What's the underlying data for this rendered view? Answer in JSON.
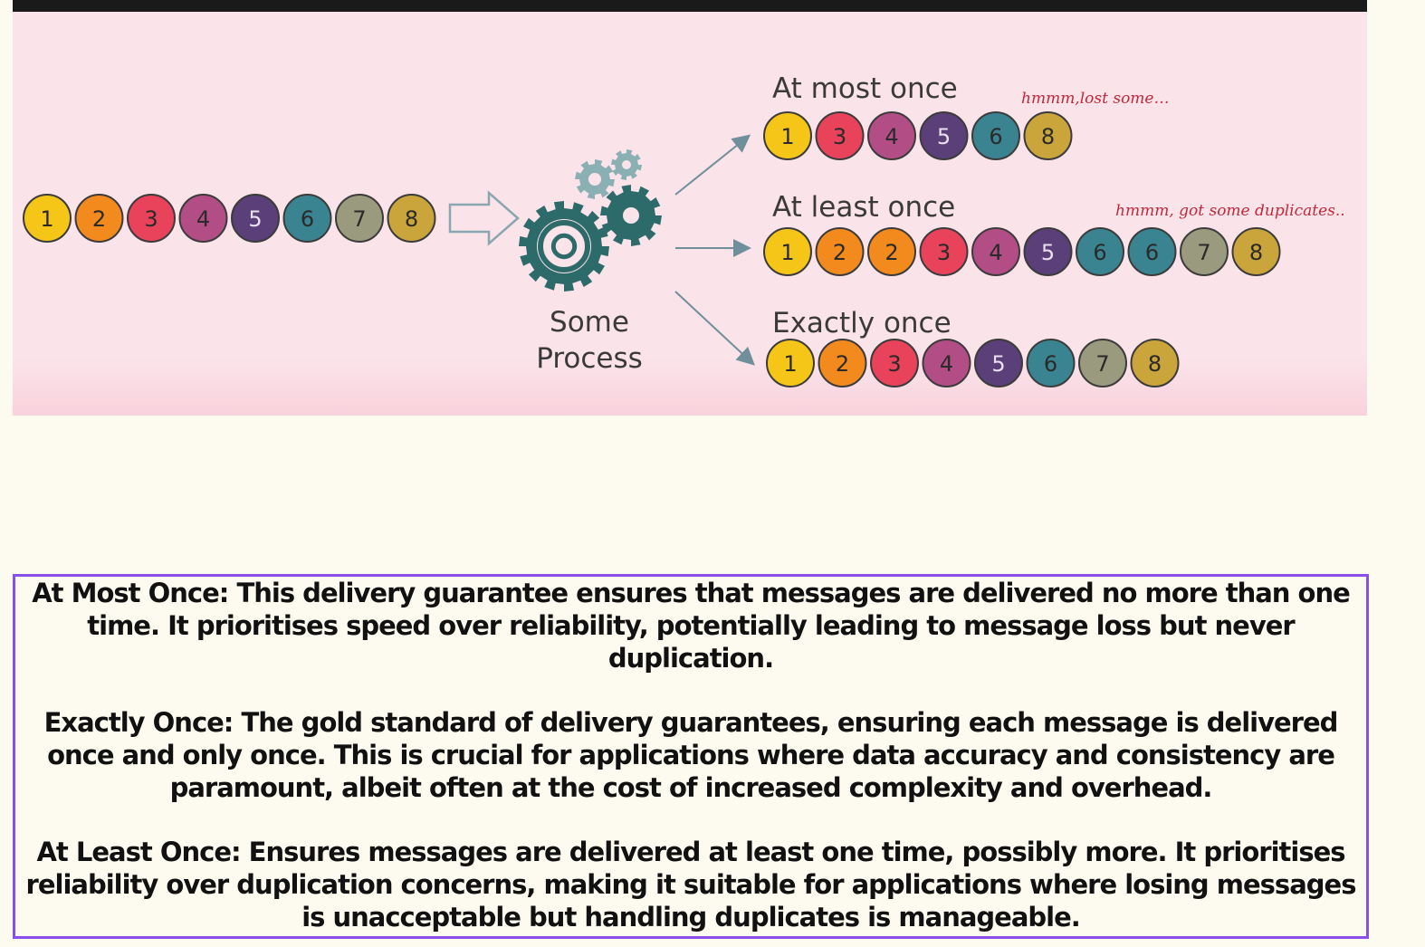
{
  "input_sequence": [
    "1",
    "2",
    "3",
    "4",
    "5",
    "6",
    "7",
    "8"
  ],
  "process_label": [
    "Some",
    "Process"
  ],
  "outputs": {
    "at_most_once": {
      "title": "At most once",
      "note": "hmmm,lost some…",
      "sequence": [
        "1",
        "3",
        "4",
        "5",
        "6",
        "8"
      ]
    },
    "at_least_once": {
      "title": "At least once",
      "note": "hmmm, got some duplicates..",
      "sequence": [
        "1",
        "2",
        "2",
        "3",
        "4",
        "5",
        "6",
        "6",
        "7",
        "8"
      ]
    },
    "exactly_once": {
      "title": "Exactly once",
      "sequence": [
        "1",
        "2",
        "3",
        "4",
        "5",
        "6",
        "7",
        "8"
      ]
    }
  },
  "colors": {
    "1": "#f5c518",
    "2": "#f28a1e",
    "3": "#e8435a",
    "4": "#b34d85",
    "5": "#5b3f78",
    "6": "#3a8391",
    "7": "#9a9a7e",
    "8": "#c9a53c",
    "gear": "#2d6b6b",
    "gear_light": "#8bb0b4",
    "arrow": "#6f8f9a",
    "box_border": "#8a4fe8"
  },
  "descriptions": {
    "at_most_once": "At Most Once: This delivery guarantee ensures that messages are delivered no more than one time. It prioritises speed over reliability, potentially leading to message loss but never duplication.",
    "exactly_once": "Exactly Once: The gold standard of delivery guarantees, ensuring each message is delivered once and only once. This is crucial for applications where data accuracy and consistency are paramount, albeit often at the cost of increased complexity and overhead.",
    "at_least_once": "At Least Once: Ensures messages are delivered at least one time, possibly more. It prioritises reliability over duplication concerns, making it suitable for applications where losing messages is unacceptable but handling duplicates is manageable."
  }
}
